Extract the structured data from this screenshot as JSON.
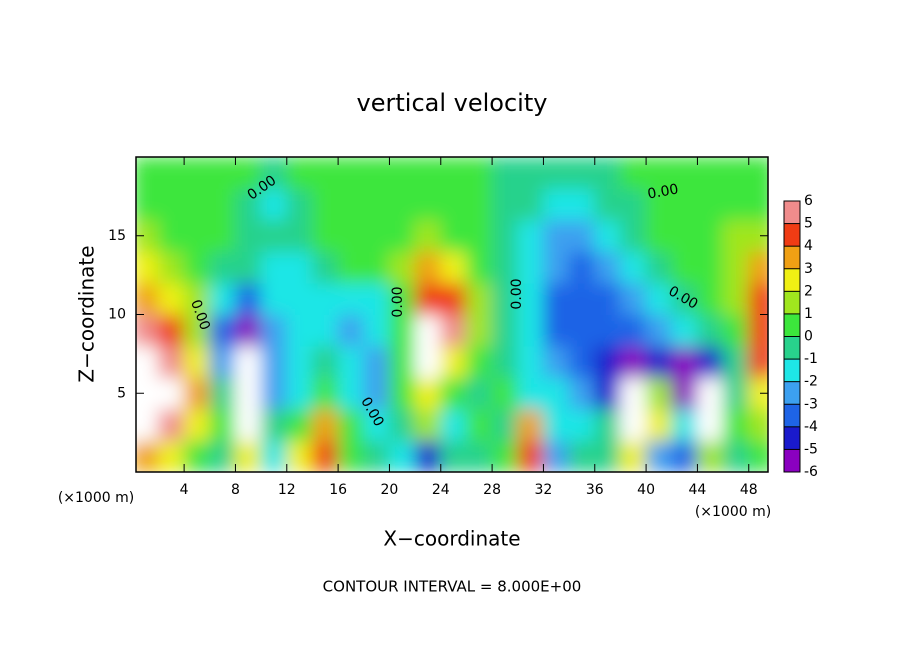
{
  "chart_data": {
    "type": "contour",
    "title": "vertical velocity",
    "x_label": "X−coordinate",
    "y_label": "Z−coordinate",
    "x_unit": "(×1000 m)",
    "footer": "CONTOUR INTERVAL = 8.000E+00",
    "contour_label": "0.00",
    "xlim": [
      0.25,
      49.5
    ],
    "ylim": [
      0,
      20
    ],
    "xticks": [
      4,
      8,
      12,
      16,
      20,
      24,
      28,
      32,
      36,
      40,
      44,
      48
    ],
    "yticks": [
      5,
      10,
      15
    ],
    "x": [
      1,
      3,
      5,
      7,
      9,
      11,
      13,
      15,
      17,
      19,
      21,
      23,
      25,
      27,
      29,
      31,
      33,
      35,
      37,
      39,
      41,
      43,
      45,
      47,
      49
    ],
    "y": [
      1,
      3,
      5,
      7,
      9,
      11,
      13,
      15,
      17,
      19
    ],
    "z": [
      [
        4,
        3,
        1,
        0,
        3,
        -1,
        3,
        5,
        1,
        0,
        -1,
        -4,
        0,
        0,
        1,
        5,
        -2,
        0,
        0,
        3,
        -2,
        -3,
        2,
        0,
        1
      ],
      [
        8,
        6,
        3,
        1,
        8,
        0,
        1,
        4,
        1,
        -1,
        0,
        2,
        -1,
        1,
        0,
        4,
        -1,
        -1,
        0,
        8,
        3,
        -1,
        8,
        1,
        2
      ],
      [
        8,
        7,
        4,
        0,
        8,
        -2,
        -1,
        1,
        -1,
        -2,
        1,
        3,
        1,
        0,
        1,
        -1,
        -1,
        -2,
        -4,
        8,
        2,
        -5,
        8,
        0,
        3
      ],
      [
        8,
        6,
        3,
        -2,
        8,
        -2,
        -1,
        0,
        -1,
        -2,
        1,
        8,
        3,
        1,
        0,
        -1,
        -2,
        -3,
        -4,
        -5,
        -4,
        -5,
        -4,
        0,
        5
      ],
      [
        6,
        5,
        2,
        -3,
        -5,
        -2,
        -1,
        -1,
        -2,
        -1,
        1,
        7,
        6,
        2,
        0,
        -1,
        -3,
        -3,
        -3.5,
        -3,
        -2,
        -1,
        -0.5,
        1,
        5
      ],
      [
        4,
        3,
        1.5,
        -1,
        -3,
        -1.5,
        -1,
        -1,
        -1,
        -1,
        1,
        5,
        5,
        2,
        0,
        -1.5,
        -3,
        -3,
        -3,
        -2.5,
        -1,
        0,
        0.5,
        2,
        5
      ],
      [
        2.5,
        1.5,
        0.5,
        0,
        -0.5,
        -1,
        -1,
        0,
        0.5,
        0.5,
        2,
        3.5,
        3,
        1,
        0,
        -1,
        -2.5,
        -3,
        -2.5,
        -1,
        0,
        0.5,
        1,
        2,
        4
      ],
      [
        1.5,
        1,
        0.5,
        0.5,
        0,
        -0.5,
        -0.5,
        0.5,
        0.5,
        0.5,
        1,
        1.5,
        1,
        0.5,
        0,
        -1,
        -2,
        -2.5,
        -1.5,
        -0.5,
        0.5,
        0.5,
        1,
        1.5,
        2
      ],
      [
        1,
        1,
        0.5,
        0.5,
        0,
        -1,
        0,
        0.5,
        0.5,
        0.5,
        1,
        1,
        0.5,
        0.5,
        0,
        -0.5,
        -1,
        -1,
        -0.5,
        0,
        0.5,
        0.5,
        0.5,
        0.5,
        1
      ],
      [
        1,
        1,
        0.5,
        0.5,
        0.5,
        0,
        0.5,
        0.5,
        0.5,
        1,
        1,
        1,
        0.5,
        0.5,
        0,
        0,
        -0.5,
        -0.5,
        0,
        0.5,
        0.5,
        0.5,
        0.5,
        0.5,
        1
      ]
    ],
    "levels": [
      -6,
      -5,
      -4,
      -3,
      -2,
      -1,
      0,
      1,
      2,
      3,
      4,
      5,
      6
    ],
    "colors": [
      "#8a00c0",
      "#1a1acc",
      "#1e64e6",
      "#3ca0f0",
      "#1ee6e6",
      "#28d28c",
      "#3ce63c",
      "#a0e61e",
      "#f0f014",
      "#f0a014",
      "#f03c14",
      "#f08c8c"
    ],
    "over_color": "#ffffff"
  }
}
